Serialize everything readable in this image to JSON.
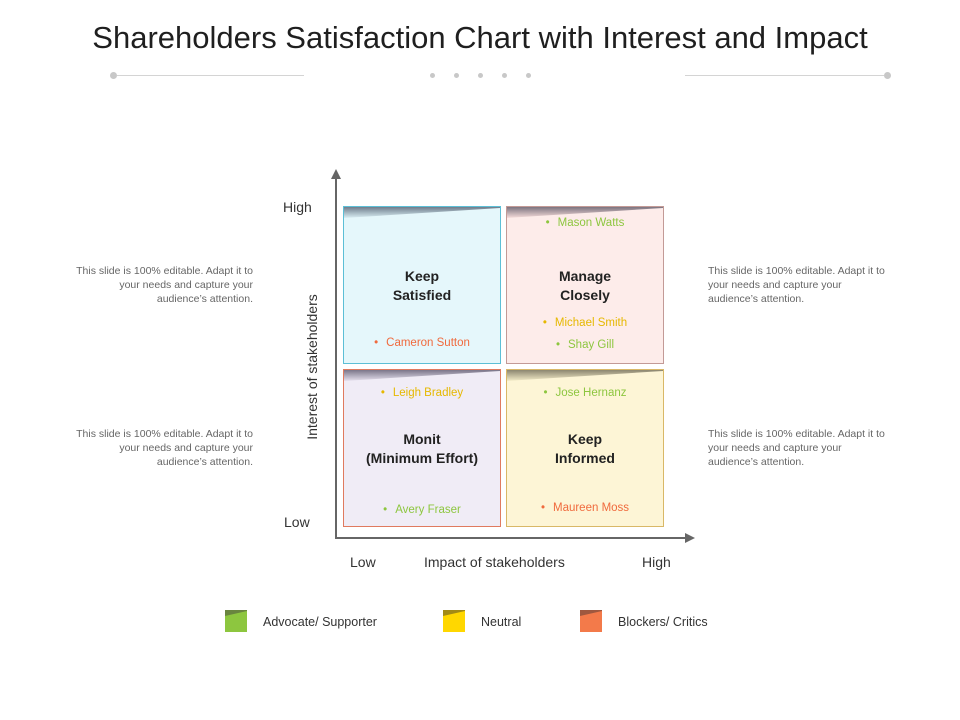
{
  "title": "Shareholders Satisfaction Chart with Interest and Impact",
  "axes": {
    "y_title": "Interest of stakeholders",
    "y_high": "High",
    "y_low": "Low",
    "x_title": "Impact of stakeholders",
    "x_low": "Low",
    "x_high": "High"
  },
  "quadrants": {
    "top_left": {
      "name_line1": "Keep",
      "name_line2": "Satisfied",
      "people": [
        {
          "name": "Cameron Sutton",
          "category": "blocker"
        }
      ]
    },
    "top_right": {
      "name_line1": "Manage",
      "name_line2": "Closely",
      "people": [
        {
          "name": "Mason Watts",
          "category": "advocate"
        },
        {
          "name": "Michael Smith",
          "category": "neutral"
        },
        {
          "name": "Shay Gill",
          "category": "advocate"
        }
      ]
    },
    "bottom_left": {
      "name_line1": "Monit",
      "name_line2": "(Minimum Effort)",
      "people": [
        {
          "name": "Leigh Bradley",
          "category": "neutral"
        },
        {
          "name": "Avery Fraser",
          "category": "advocate"
        }
      ]
    },
    "bottom_right": {
      "name_line1": "Keep",
      "name_line2": "Informed",
      "people": [
        {
          "name": "Jose Hernanz",
          "category": "advocate"
        },
        {
          "name": "Maureen Moss",
          "category": "blocker"
        }
      ]
    }
  },
  "side_notes": {
    "left_top": "This slide is 100% editable. Adapt it to your needs and capture your audience’s attention.",
    "left_bottom": "This slide is 100% editable. Adapt it to your needs and capture your audience’s attention.",
    "right_top": "This slide is 100% editable. Adapt it to your needs and capture your audience’s attention.",
    "right_bottom": "This slide is 100% editable. Adapt it to your needs and capture your audience’s attention."
  },
  "legend": [
    {
      "label": "Advocate/ Supporter",
      "color": "#8dc63f"
    },
    {
      "label": "Neutral",
      "color": "#ffd700"
    },
    {
      "label": "Blockers/ Critics",
      "color": "#f37a4a"
    }
  ],
  "bullet": "•"
}
